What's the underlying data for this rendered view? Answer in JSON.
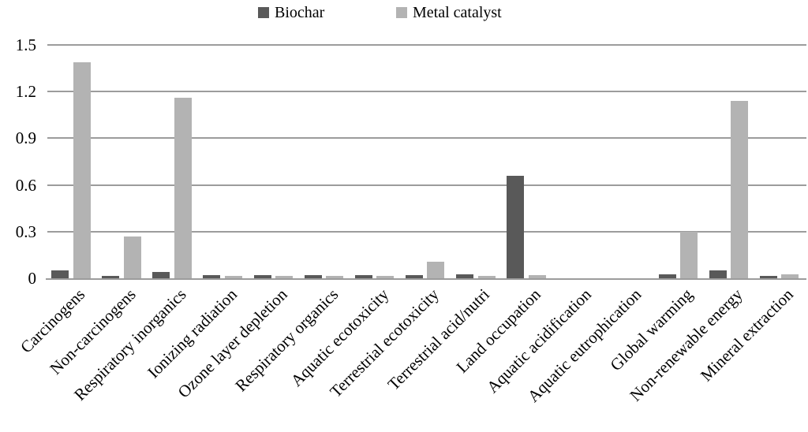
{
  "legend": [
    {
      "label": "Biochar",
      "color": "#595959"
    },
    {
      "label": "Metal catalyst",
      "color": "#b3b3b3"
    }
  ],
  "chart_data": {
    "type": "bar",
    "title": "",
    "xlabel": "",
    "ylabel": "",
    "categories": [
      "Carcinogens",
      "Non-carcinogens",
      "Respiratory inorganics",
      "Ionizing radiation",
      "Ozone layer depletion",
      "Respiratory organics",
      "Aquatic ecotoxicity",
      "Terrestrial ecotoxicity",
      "Terrestrial acid/nutri",
      "Land occupation",
      "Aquatic acidification",
      "Aquatic eutrophication",
      "Global warming",
      "Non-renewable energy",
      "Mineral extraction"
    ],
    "series": [
      {
        "name": "Biochar",
        "color": "#595959",
        "values": [
          0.05,
          0.015,
          0.04,
          0.02,
          0.02,
          0.02,
          0.02,
          0.02,
          0.025,
          0.66,
          0,
          0,
          0.025,
          0.05,
          0.015
        ]
      },
      {
        "name": "Metal catalyst",
        "color": "#b3b3b3",
        "values": [
          1.39,
          0.27,
          1.16,
          0.015,
          0.015,
          0.015,
          0.015,
          0.105,
          0.015,
          0.02,
          0,
          0,
          0.3,
          1.14,
          0.025
        ]
      }
    ],
    "ylim": [
      0,
      1.5
    ],
    "yticks": [
      0,
      0.3,
      0.6,
      0.9,
      1.2,
      1.5
    ],
    "ytick_labels": [
      "0",
      "0.3",
      "0.6",
      "0.9",
      "1.2",
      "1.5"
    ],
    "grid": true,
    "legend_position": "top-center",
    "gridline_color": "#9c9c9c",
    "axis_color": "#9c9c9c"
  }
}
